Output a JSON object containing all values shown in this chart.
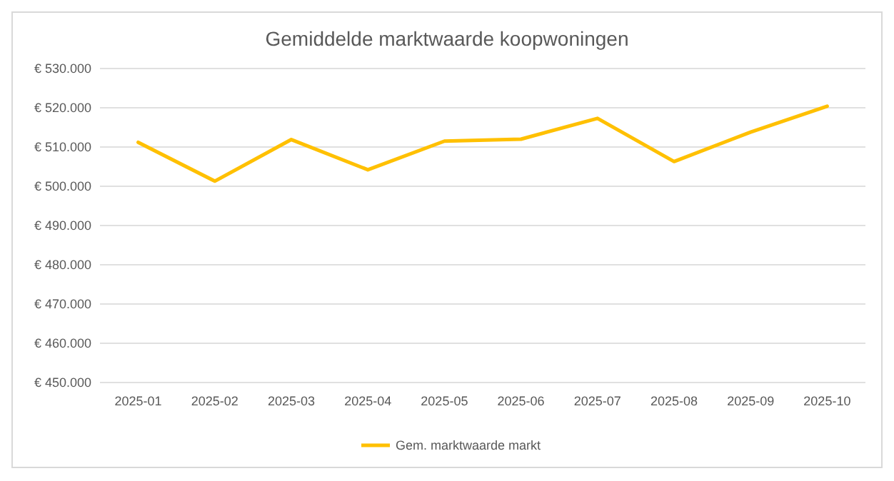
{
  "chart_data": {
    "type": "line",
    "title": "Gemiddelde marktwaarde koopwoningen",
    "categories": [
      "2025-01",
      "2025-02",
      "2025-03",
      "2025-04",
      "2025-05",
      "2025-06",
      "2025-07",
      "2025-08",
      "2025-09",
      "2025-10"
    ],
    "series": [
      {
        "name": "Gem. marktwaarde markt",
        "color": "#ffc000",
        "values": [
          511200,
          501300,
          511900,
          504200,
          511500,
          512000,
          517300,
          506300,
          513800,
          520400
        ]
      }
    ],
    "ylim": [
      450000,
      530000
    ],
    "yticks": [
      {
        "value": 450000,
        "label": "€ 450.000"
      },
      {
        "value": 460000,
        "label": "€ 460.000"
      },
      {
        "value": 470000,
        "label": "€ 470.000"
      },
      {
        "value": 480000,
        "label": "€ 480.000"
      },
      {
        "value": 490000,
        "label": "€ 490.000"
      },
      {
        "value": 500000,
        "label": "€ 500.000"
      },
      {
        "value": 510000,
        "label": "€ 510.000"
      },
      {
        "value": 520000,
        "label": "€ 520.000"
      },
      {
        "value": 530000,
        "label": "€ 530.000"
      }
    ],
    "grid": "y",
    "legend": "bottom",
    "marker": "none",
    "line_style": "solid"
  }
}
